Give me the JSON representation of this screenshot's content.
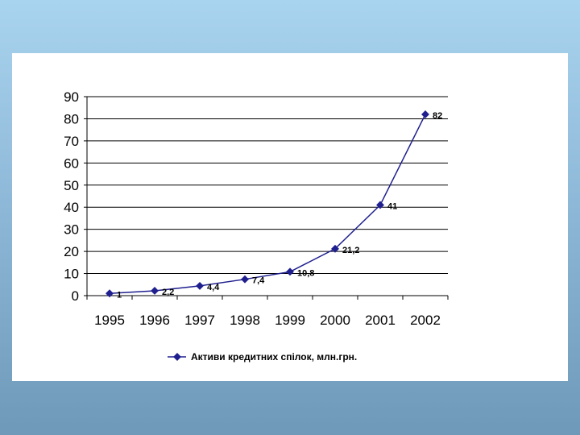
{
  "chart_data": {
    "type": "line",
    "categories": [
      "1995",
      "1996",
      "1997",
      "1998",
      "1999",
      "2000",
      "2001",
      "2002"
    ],
    "series": [
      {
        "name": "Активи кредитних спілок, млн.грн.",
        "values": [
          1,
          2.2,
          4.4,
          7.4,
          10.8,
          21.2,
          41,
          82
        ],
        "labels": [
          "1",
          "2,2",
          "4,4",
          "7,4",
          "10,8",
          "21,2",
          "41",
          "82"
        ],
        "color": "#1f1f8f"
      }
    ],
    "ylim": [
      0,
      90
    ],
    "yticks": [
      "0",
      "10",
      "20",
      "30",
      "40",
      "50",
      "60",
      "70",
      "80",
      "90"
    ],
    "grid": true,
    "legend_position": "bottom"
  }
}
